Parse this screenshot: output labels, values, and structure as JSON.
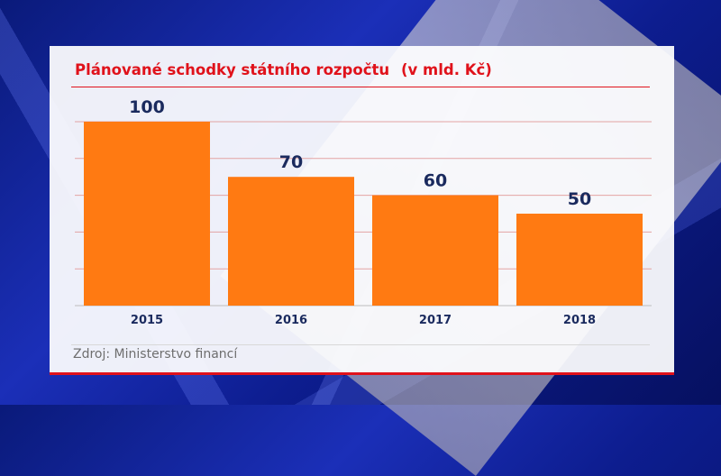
{
  "chart_data": {
    "type": "bar",
    "title": "Plánované schodky státního rozpočtu",
    "unit_label": "(v mld. Kč)",
    "categories": [
      "2015",
      "2016",
      "2017",
      "2018"
    ],
    "values": [
      100,
      70,
      60,
      50
    ],
    "data_labels": [
      "100",
      "70",
      "60",
      "50"
    ],
    "ylim": [
      0,
      100
    ],
    "grid": true,
    "bar_color": "#ff7a12",
    "title_color": "#e0121b",
    "label_color": "#1a2a5e"
  },
  "source": "Zdroj: Ministerstvo financí"
}
